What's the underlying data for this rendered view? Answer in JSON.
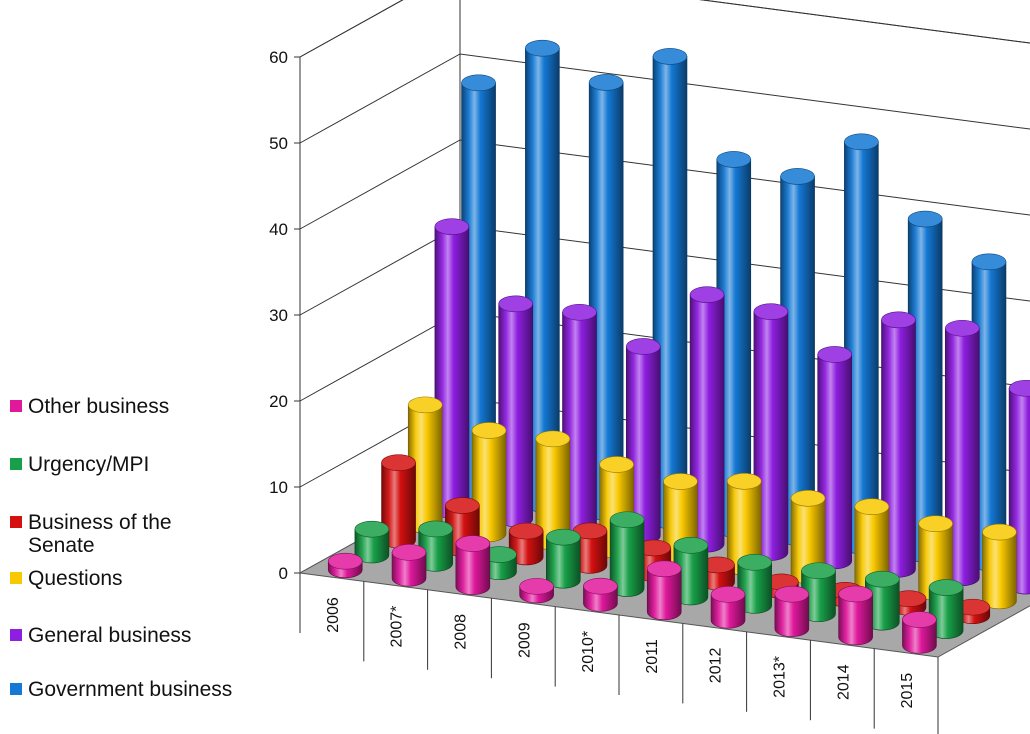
{
  "chart_data": {
    "type": "bar",
    "style": "3d-cylinder",
    "categories": [
      "2006",
      "2007*",
      "2008",
      "2009",
      "2010*",
      "2011",
      "2012",
      "2013*",
      "2014",
      "2015"
    ],
    "yticks": [
      "0",
      "10",
      "20",
      "30",
      "40",
      "50",
      "60"
    ],
    "ylim": [
      0,
      60
    ],
    "legend_position": "left",
    "series": [
      {
        "name": "Other business",
        "color": "#e0189c",
        "values": [
          1,
          3,
          5,
          1,
          2,
          5,
          3,
          4,
          5,
          3
        ]
      },
      {
        "name": "Urgency/MPI",
        "color": "#18a048",
        "values": [
          3,
          4,
          2,
          5,
          8,
          6,
          5,
          5,
          5,
          5
        ]
      },
      {
        "name": "Business of the Senate",
        "color": "#d41010",
        "values": [
          9,
          5,
          3,
          4,
          3,
          2,
          1,
          1,
          1,
          1
        ]
      },
      {
        "name": "Questions",
        "color": "#f8c800",
        "values": [
          14,
          12,
          12,
          10,
          9,
          10,
          9,
          9,
          8,
          8
        ]
      },
      {
        "name": "General business",
        "color": "#8e1ee0",
        "values": [
          33,
          25,
          25,
          22,
          29,
          28,
          24,
          29,
          29,
          23
        ]
      },
      {
        "name": "Government business",
        "color": "#1478d4",
        "values": [
          48,
          53,
          50,
          54,
          43,
          42,
          47,
          39,
          35,
          39
        ]
      }
    ]
  }
}
